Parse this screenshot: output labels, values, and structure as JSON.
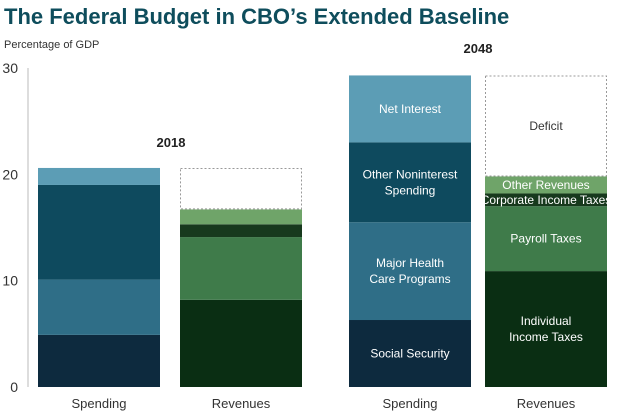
{
  "title": "The Federal Budget in CBO’s Extended Baseline",
  "units_label": "Percentage of GDP",
  "colors": {
    "title": "#0e4d5c",
    "social_security": "#0d2a3e",
    "major_health": "#2f6e87",
    "other_noninterest": "#0e4a5e",
    "net_interest": "#5c9db5",
    "individual_income": "#0a2e13",
    "payroll": "#3f7b4a",
    "corporate": "#17391d",
    "other_revenues": "#6fa469",
    "deficit_border": "#999999"
  },
  "chart_data": {
    "type": "bar",
    "stacked": true,
    "y_axis": {
      "min": 0,
      "max": 30,
      "ticks": [
        0,
        10,
        20,
        30
      ]
    },
    "groups": [
      {
        "year": "2018",
        "bars": [
          {
            "category": "Spending",
            "segments": [
              {
                "name": "Social Security",
                "value": 4.9,
                "color_key": "social_security",
                "show_label": false
              },
              {
                "name": "Major Health Care Programs",
                "value": 5.2,
                "color_key": "major_health",
                "show_label": false
              },
              {
                "name": "Other Noninterest Spending",
                "value": 8.9,
                "color_key": "other_noninterest",
                "show_label": false
              },
              {
                "name": "Net Interest",
                "value": 1.6,
                "color_key": "net_interest",
                "show_label": false
              }
            ]
          },
          {
            "category": "Revenues",
            "segments": [
              {
                "name": "Individual Income Taxes",
                "value": 8.2,
                "color_key": "individual_income",
                "show_label": false
              },
              {
                "name": "Payroll Taxes",
                "value": 5.9,
                "color_key": "payroll",
                "show_label": false
              },
              {
                "name": "Corporate Income Taxes",
                "value": 1.2,
                "color_key": "corporate",
                "show_label": false
              },
              {
                "name": "Other Revenues",
                "value": 1.4,
                "color_key": "other_revenues",
                "show_label": false
              },
              {
                "name": "Deficit",
                "value": 3.9,
                "color_key": "deficit",
                "show_label": false,
                "outline": true
              }
            ]
          }
        ]
      },
      {
        "year": "2048",
        "bars": [
          {
            "category": "Spending",
            "segments": [
              {
                "name": "Social Security",
                "label_lines": [
                  "Social Security"
                ],
                "value": 6.3,
                "color_key": "social_security",
                "show_label": true
              },
              {
                "name": "Major Health Care Programs",
                "label_lines": [
                  "Major Health",
                  "Care Programs"
                ],
                "value": 9.2,
                "color_key": "major_health",
                "show_label": true
              },
              {
                "name": "Other Noninterest Spending",
                "label_lines": [
                  "Other Noninterest",
                  "Spending"
                ],
                "value": 7.5,
                "color_key": "other_noninterest",
                "show_label": true
              },
              {
                "name": "Net Interest",
                "label_lines": [
                  "Net Interest"
                ],
                "value": 6.3,
                "color_key": "net_interest",
                "show_label": true
              }
            ]
          },
          {
            "category": "Revenues",
            "segments": [
              {
                "name": "Individual Income Taxes",
                "label_lines": [
                  "Individual",
                  "Income Taxes"
                ],
                "value": 10.9,
                "color_key": "individual_income",
                "show_label": true
              },
              {
                "name": "Payroll Taxes",
                "label_lines": [
                  "Payroll Taxes"
                ],
                "value": 6.1,
                "color_key": "payroll",
                "show_label": true
              },
              {
                "name": "Corporate Income Taxes",
                "label_lines": [
                  "Corporate Income Taxes"
                ],
                "value": 1.2,
                "color_key": "corporate",
                "show_label": true
              },
              {
                "name": "Other Revenues",
                "label_lines": [
                  "Other Revenues"
                ],
                "value": 1.6,
                "color_key": "other_revenues",
                "show_label": true
              },
              {
                "name": "Deficit",
                "label_lines": [
                  "Deficit"
                ],
                "value": 9.5,
                "color_key": "deficit",
                "show_label": true,
                "outline": true
              }
            ]
          }
        ]
      }
    ]
  }
}
